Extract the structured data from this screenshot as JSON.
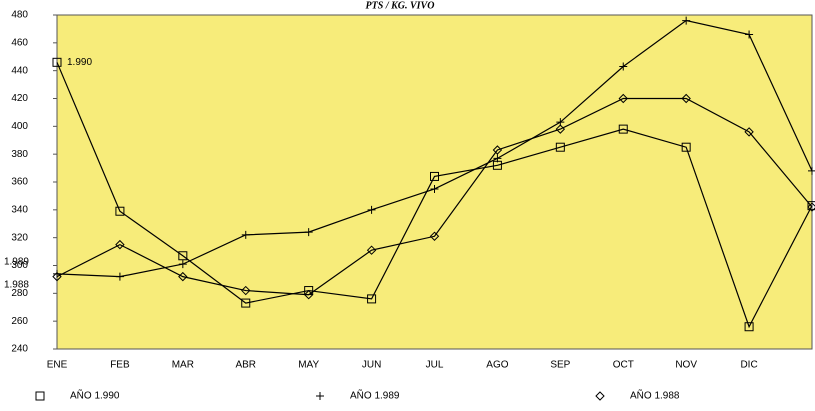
{
  "chart_data": {
    "type": "line",
    "title": "PTS / KG. VIVO",
    "categories": [
      "ENE",
      "FEB",
      "MAR",
      "ABR",
      "MAY",
      "JUN",
      "JUL",
      "AGO",
      "SEP",
      "OCT",
      "NOV",
      "DIC",
      null
    ],
    "series": [
      {
        "name": "AÑO 1.990",
        "color": "#000000",
        "marker": "square",
        "end_label": "1.990",
        "values": [
          446,
          339,
          307,
          273,
          282,
          276,
          364,
          372,
          385,
          398,
          385,
          256,
          343
        ]
      },
      {
        "name": "AÑO 1.989",
        "color": "#000000",
        "marker": "plus",
        "end_label": "1.989",
        "values": [
          294,
          292,
          301,
          322,
          324,
          340,
          355,
          377,
          403,
          443,
          476,
          466,
          368
        ]
      },
      {
        "name": "AÑO 1.988",
        "color": "#000000",
        "marker": "diamond",
        "end_label": "1.988",
        "values": [
          292,
          315,
          292,
          282,
          279,
          311,
          321,
          383,
          398,
          420,
          420,
          396,
          342
        ]
      }
    ],
    "ylim": [
      240,
      480
    ],
    "yticks": [
      240,
      260,
      280,
      300,
      320,
      340,
      360,
      380,
      400,
      420,
      440,
      460,
      480
    ],
    "background": "#f7ec7a",
    "grid": false
  }
}
